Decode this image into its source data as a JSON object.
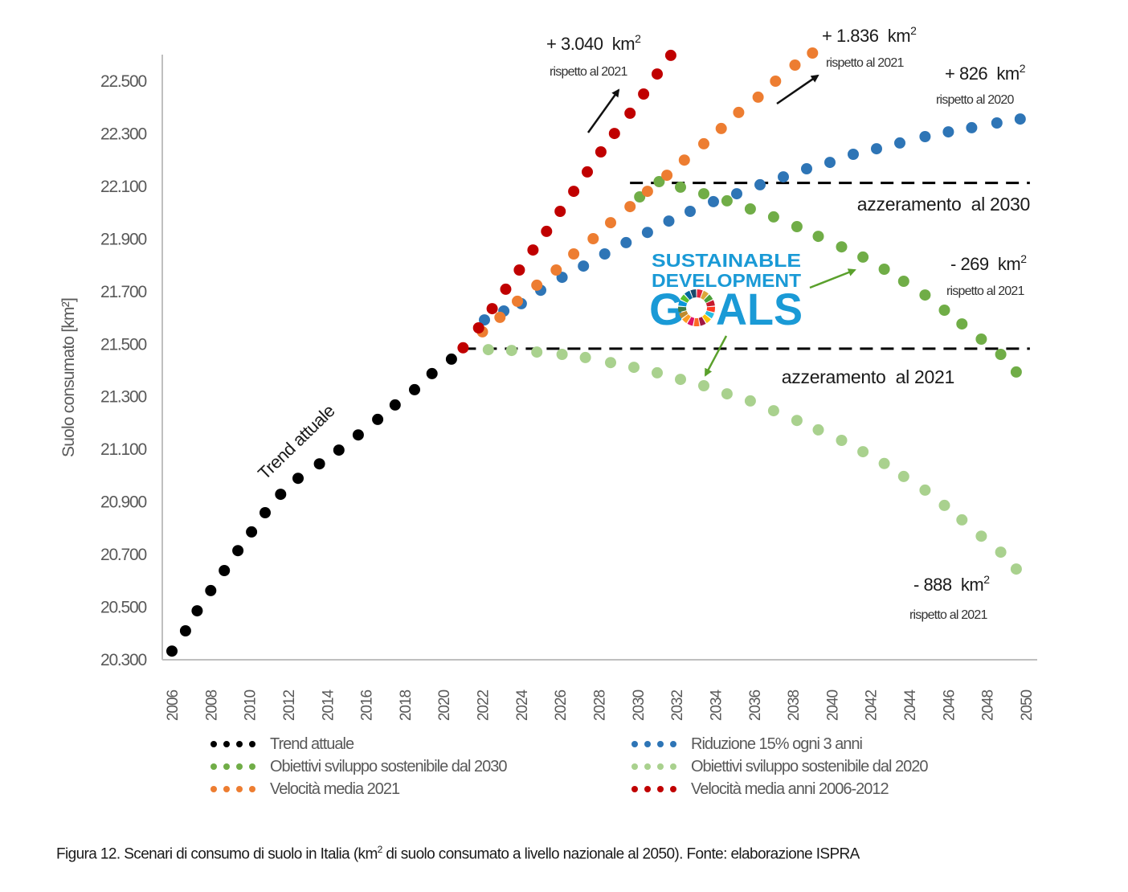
{
  "chart_data": {
    "type": "scatter",
    "title": "",
    "xlabel": "",
    "ylabel": "Suolo consumato [km²]",
    "xlim": [
      2005.5,
      2050.6
    ],
    "ylim": [
      20300,
      22600
    ],
    "x_ticks": [
      "2006",
      "2008",
      "2010",
      "2012",
      "2014",
      "2016",
      "2018",
      "2020",
      "2022",
      "2024",
      "2026",
      "2028",
      "2030",
      "2032",
      "2034",
      "2036",
      "2038",
      "2040",
      "2042",
      "2044",
      "2046",
      "2048",
      "2050"
    ],
    "y_ticks": [
      "20.300",
      "20.500",
      "20.700",
      "20.900",
      "21.100",
      "21.300",
      "21.500",
      "21.700",
      "21.900",
      "22.100",
      "22.300",
      "22.500"
    ],
    "grid": false,
    "legend_position": "bottom",
    "series": [
      {
        "name": "Trend attuale",
        "color": "#000000",
        "x": [
          2006.0,
          2006.7,
          2007.3,
          2008.0,
          2008.7,
          2009.4,
          2010.1,
          2010.8,
          2011.6,
          2012.5,
          2013.6,
          2014.6,
          2015.6,
          2016.6,
          2017.5,
          2018.5,
          2019.4,
          2020.4
        ],
        "y": [
          20330,
          20407,
          20483,
          20560,
          20636,
          20712,
          20783,
          20856,
          20926,
          20987,
          21042,
          21094,
          21152,
          21211,
          21266,
          21324,
          21385,
          21440
        ]
      },
      {
        "name": "Riduzione 15% ogni 3 anni",
        "color": "#2e75b6",
        "x": [
          2022.1,
          2023.1,
          2024.0,
          2025.0,
          2026.1,
          2027.2,
          2028.3,
          2029.4,
          2030.5,
          2031.6,
          2032.7,
          2033.9,
          2035.1,
          2036.3,
          2037.5,
          2038.7,
          2039.9,
          2041.1,
          2042.3,
          2043.5,
          2044.8,
          2046.0,
          2047.2,
          2048.5,
          2049.7
        ],
        "y": [
          21589,
          21623,
          21651,
          21702,
          21751,
          21794,
          21840,
          21883,
          21922,
          21965,
          22002,
          22039,
          22069,
          22103,
          22133,
          22164,
          22188,
          22219,
          22240,
          22262,
          22286,
          22304,
          22320,
          22338,
          22353
        ]
      },
      {
        "name": "Obiettivi sviluppo sostenibile dal 2030",
        "color": "#70ad47",
        "x": [
          2030.1,
          2031.1,
          2032.2,
          2033.4,
          2034.6,
          2035.8,
          2037.0,
          2038.2,
          2039.3,
          2040.5,
          2041.6,
          2042.7,
          2043.7,
          2044.8,
          2045.8,
          2046.7,
          2047.7,
          2048.7,
          2049.5
        ],
        "y": [
          22057,
          22115,
          22094,
          22069,
          22042,
          22011,
          21981,
          21944,
          21907,
          21867,
          21828,
          21782,
          21736,
          21684,
          21626,
          21574,
          21516,
          21458,
          21391
        ]
      },
      {
        "name": "Obiettivi sviluppo sostenibile dal 2020",
        "color": "#a9d18e",
        "x": [
          2022.3,
          2023.5,
          2024.8,
          2026.1,
          2027.3,
          2028.6,
          2029.8,
          2031.0,
          2032.2,
          2033.4,
          2034.6,
          2035.8,
          2037.0,
          2038.2,
          2039.3,
          2040.5,
          2041.6,
          2042.7,
          2043.7,
          2044.8,
          2045.8,
          2046.7,
          2047.7,
          2048.7,
          2049.5
        ],
        "y": [
          21476,
          21473,
          21467,
          21458,
          21446,
          21427,
          21409,
          21388,
          21363,
          21339,
          21308,
          21281,
          21244,
          21207,
          21171,
          21131,
          21088,
          21043,
          20994,
          20942,
          20884,
          20829,
          20767,
          20706,
          20642
        ]
      },
      {
        "name": "Velocità media 2021",
        "color": "#ed7d31",
        "x": [
          2022.0,
          2022.9,
          2023.8,
          2024.8,
          2025.8,
          2026.7,
          2027.7,
          2028.6,
          2029.6,
          2030.5,
          2031.5,
          2032.4,
          2033.4,
          2034.3,
          2035.2,
          2036.2,
          2037.1,
          2038.1,
          2039.0
        ],
        "y": [
          21544,
          21599,
          21660,
          21721,
          21779,
          21840,
          21898,
          21959,
          22020,
          22078,
          22139,
          22197,
          22259,
          22317,
          22378,
          22436,
          22497,
          22558,
          22604
        ]
      },
      {
        "name": "Velocità media anni 2006-2012",
        "color": "#c00000",
        "x": [
          2021.0,
          2021.8,
          2022.5,
          2023.2,
          2023.9,
          2024.6,
          2025.3,
          2026.0,
          2026.7,
          2027.4,
          2028.1,
          2028.8,
          2029.6,
          2030.3,
          2031.0,
          2031.7
        ],
        "y": [
          21483,
          21559,
          21632,
          21706,
          21779,
          21855,
          21926,
          22002,
          22078,
          22152,
          22228,
          22298,
          22375,
          22448,
          22524,
          22595
        ]
      }
    ],
    "reference_lines": [
      {
        "label": "azzeramento  al 2030",
        "y": 22110,
        "x_start": 2029.6,
        "x_end": 2050.2
      },
      {
        "label": "azzeramento  al 2021",
        "y": 21480,
        "x_start": 2021.0,
        "x_end": 2050.2
      }
    ],
    "annotations": [
      {
        "value": "+ 3.040  km",
        "sup": "2",
        "note": "rispetto al 2021"
      },
      {
        "value": "+ 1.836  km",
        "sup": "2",
        "note": "rispetto al 2021"
      },
      {
        "value": "+ 826  km",
        "sup": "2",
        "note": "rispetto al 2020"
      },
      {
        "value": "- 269  km",
        "sup": "2",
        "note": "rispetto al 2021"
      },
      {
        "value": "- 888  km",
        "sup": "2",
        "note": "rispetto al 2021"
      }
    ],
    "trend_label": "Trend attuale",
    "sdg_logo": {
      "line1": "SUSTAINABLE",
      "line2": "DEVELOPMENT",
      "line3_a": "G",
      "line3_b": "ALS"
    }
  },
  "legend": [
    {
      "label": "Trend attuale",
      "color": "#000000"
    },
    {
      "label": "Riduzione 15% ogni 3 anni",
      "color": "#2e75b6"
    },
    {
      "label": "Obiettivi sviluppo sostenibile dal 2030",
      "color": "#70ad47"
    },
    {
      "label": "Obiettivi sviluppo sostenibile dal 2020",
      "color": "#a9d18e"
    },
    {
      "label": "Velocità media 2021",
      "color": "#ed7d31"
    },
    {
      "label": "Velocità media anni 2006-2012",
      "color": "#c00000"
    }
  ],
  "caption": {
    "part1": "Figura 12. Scenari di consumo di suolo in Italia (km",
    "sup": "2",
    "part2": " di suolo consumato a livello nazionale al 2050). Fonte: elaborazione ISPRA"
  }
}
